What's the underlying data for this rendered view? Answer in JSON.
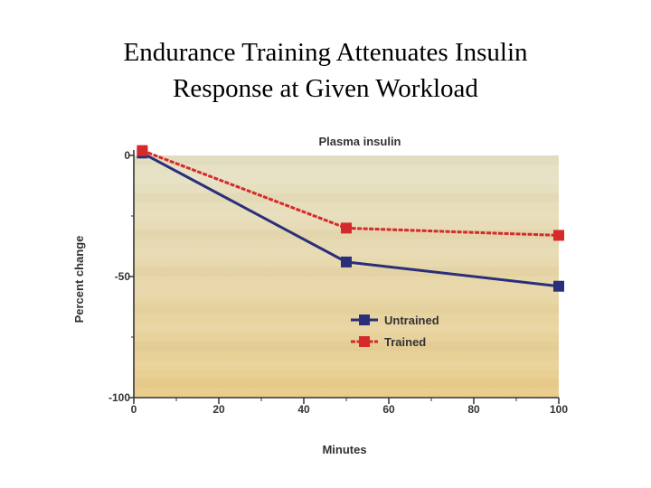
{
  "slide": {
    "title": "Endurance Training Attenuates Insulin\nResponse at Given Workload"
  },
  "colors": {
    "untrained": "#2b2f7a",
    "trained": "#d6292b",
    "plot_top": "#e6e2c8",
    "plot_bottom": "#e9cd8d"
  },
  "chart_data": {
    "type": "line",
    "title": "Plasma insulin",
    "xlabel": "Minutes",
    "ylabel": "Percent change",
    "xlim": [
      0,
      100
    ],
    "ylim": [
      -100,
      0
    ],
    "x_ticks": [
      "0",
      "20",
      "40",
      "60",
      "80",
      "100"
    ],
    "y_ticks": [
      "0",
      "-50",
      "-100"
    ],
    "grid": false,
    "legend_position": "lower-right",
    "series": [
      {
        "name": "Untrained",
        "x": [
          2,
          50,
          100
        ],
        "y": [
          1,
          -44,
          -54
        ]
      },
      {
        "name": "Trained",
        "x": [
          2,
          50,
          100
        ],
        "y": [
          2,
          -30,
          -33
        ]
      }
    ]
  }
}
